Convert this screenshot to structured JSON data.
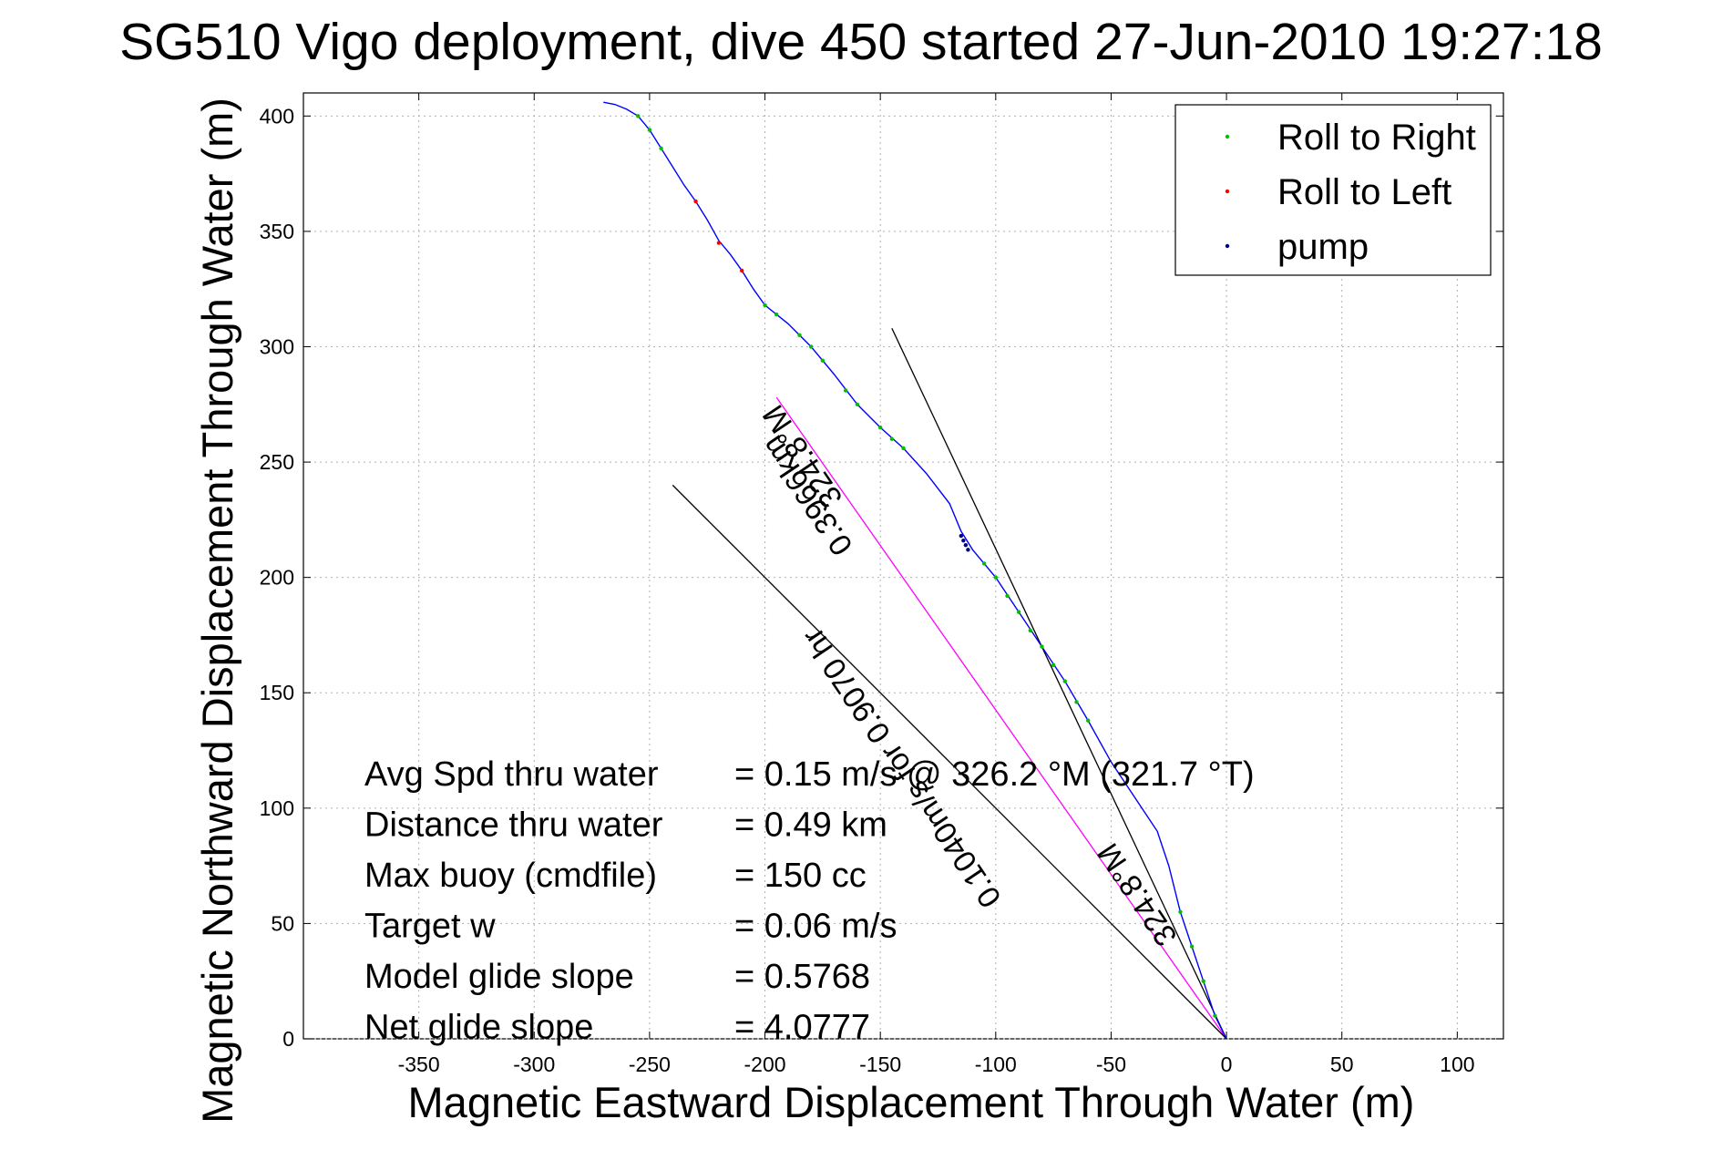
{
  "chart_data": {
    "type": "line",
    "title": "SG510 Vigo deployment, dive 450 started 27-Jun-2010 19:27:18",
    "xlabel": "Magnetic Eastward Displacement Through Water (m)",
    "ylabel": "Magnetic Northward Displacement Through Water (m)",
    "xlim": [
      -400,
      120
    ],
    "ylim": [
      0,
      410
    ],
    "xticks": [
      -350,
      -300,
      -250,
      -200,
      -150,
      -100,
      -50,
      0,
      50,
      100
    ],
    "yticks": [
      0,
      50,
      100,
      150,
      200,
      250,
      300,
      350,
      400
    ],
    "grid": true,
    "legend_position": "top-right",
    "legend": [
      {
        "label": "Roll to Right",
        "color": "#00c000"
      },
      {
        "label": "Roll to Left",
        "color": "#ff0000"
      },
      {
        "label": "pump",
        "color": "#000080"
      }
    ],
    "track": {
      "color": "#0000ff",
      "x": [
        0,
        -5,
        -10,
        -15,
        -20,
        -25,
        -30,
        -40,
        -50,
        -60,
        -70,
        -80,
        -90,
        -100,
        -110,
        -115,
        -120,
        -130,
        -140,
        -150,
        -160,
        -170,
        -180,
        -190,
        -200,
        -205,
        -210,
        -215,
        -220,
        -225,
        -230,
        -235,
        -240,
        -245,
        -250,
        -255,
        -260,
        -265,
        -270
      ],
      "y": [
        0,
        10,
        25,
        40,
        55,
        75,
        90,
        105,
        120,
        138,
        155,
        170,
        185,
        200,
        212,
        220,
        232,
        245,
        256,
        265,
        275,
        288,
        300,
        310,
        318,
        325,
        333,
        340,
        346,
        355,
        363,
        370,
        378,
        386,
        394,
        400,
        403,
        405,
        406
      ]
    },
    "roll_right_points": {
      "x": [
        -5,
        -10,
        -15,
        -20,
        -60,
        -65,
        -70,
        -75,
        -80,
        -85,
        -90,
        -95,
        -100,
        -105,
        -140,
        -145,
        -150,
        -160,
        -165,
        -175,
        -180,
        -185,
        -195,
        -200,
        -245,
        -250,
        -255
      ],
      "y": [
        10,
        25,
        40,
        55,
        138,
        146,
        155,
        162,
        170,
        177,
        185,
        192,
        200,
        206,
        256,
        260,
        265,
        275,
        281,
        294,
        300,
        305,
        314,
        318,
        386,
        394,
        400
      ]
    },
    "roll_left_points": {
      "x": [
        -220,
        -230,
        -210
      ],
      "y": [
        345,
        363,
        333
      ]
    },
    "pump_points": {
      "x": [
        -112,
        -113,
        -114,
        -115
      ],
      "y": [
        212,
        214,
        216,
        218
      ]
    },
    "heading_lines": [
      {
        "x": [
          0,
          -145
        ],
        "y": [
          0,
          308
        ],
        "color": "#000000"
      },
      {
        "x": [
          0,
          -195
        ],
        "y": [
          0,
          278
        ],
        "color": "#ff00ff"
      },
      {
        "x": [
          0,
          -240
        ],
        "y": [
          0,
          240
        ],
        "color": "#000000"
      }
    ],
    "rotated_labels": [
      {
        "text": "324.8°M",
        "x": -180,
        "y": 255,
        "angle": 56
      },
      {
        "text": "0.3966km",
        "x": -178,
        "y": 238,
        "angle": 56
      },
      {
        "text": "0.1040m/s for 0.9070 hr",
        "x": -137,
        "y": 120,
        "angle": 56
      },
      {
        "text": "324.8°M",
        "x": -35,
        "y": 65,
        "angle": 56
      }
    ],
    "stats": [
      {
        "label": "Avg Spd thru water",
        "value": "=  0.15 m/s @  326.2  °M (321.7 °T)"
      },
      {
        "label": "Distance thru water",
        "value": "=  0.49 km"
      },
      {
        "label": "Max buoy (cmdfile)",
        "value": "= 150 cc"
      },
      {
        "label": "Target w",
        "value": "= 0.06 m/s"
      },
      {
        "label": "Model glide slope",
        "value": "= 0.5768"
      },
      {
        "label": "Net glide slope",
        "value": "= 4.0777"
      }
    ]
  }
}
